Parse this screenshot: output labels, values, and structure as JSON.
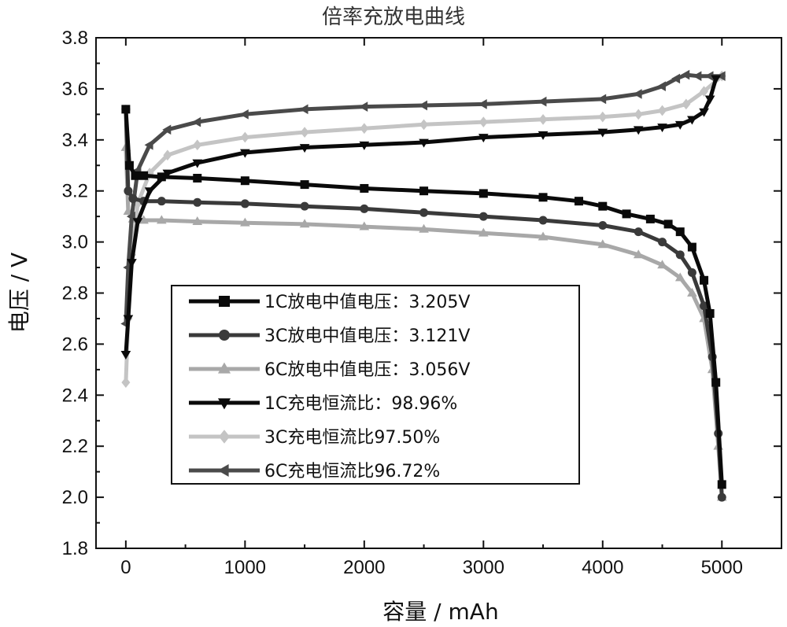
{
  "chart_data": {
    "type": "line",
    "title": "倍率充放电曲线",
    "xlabel": "容量 / mAh",
    "ylabel": "电压 / V",
    "xlim": [
      -250,
      5500
    ],
    "ylim": [
      1.8,
      3.8
    ],
    "xticks": [
      0,
      1000,
      2000,
      3000,
      4000,
      5000
    ],
    "yticks": [
      1.8,
      2.0,
      2.2,
      2.4,
      2.6,
      2.8,
      3.0,
      3.2,
      3.4,
      3.6,
      3.8
    ],
    "xtick_labels": [
      "0",
      "1000",
      "2000",
      "3000",
      "4000",
      "5000"
    ],
    "ytick_labels": [
      "1.8",
      "2.0",
      "2.2",
      "2.4",
      "2.6",
      "2.8",
      "3.0",
      "3.2",
      "3.4",
      "3.6",
      "3.8"
    ],
    "legend_position": "center-left",
    "series": [
      {
        "name": "1C放电中值电压：3.205V",
        "color": "#0a0a0a",
        "marker": "square",
        "x": [
          0,
          30,
          80,
          150,
          300,
          600,
          1000,
          1500,
          2000,
          2500,
          3000,
          3500,
          3800,
          4000,
          4200,
          4400,
          4550,
          4650,
          4750,
          4850,
          4900,
          4950,
          5000
        ],
        "y": [
          3.52,
          3.3,
          3.26,
          3.26,
          3.255,
          3.25,
          3.24,
          3.225,
          3.21,
          3.2,
          3.19,
          3.175,
          3.16,
          3.14,
          3.11,
          3.09,
          3.07,
          3.04,
          2.98,
          2.85,
          2.72,
          2.45,
          2.05
        ]
      },
      {
        "name": "3C放电中值电压：3.121V",
        "color": "#3a3a3a",
        "marker": "circle",
        "x": [
          0,
          20,
          60,
          150,
          300,
          600,
          1000,
          1500,
          2000,
          2500,
          3000,
          3500,
          4000,
          4300,
          4500,
          4650,
          4750,
          4850,
          4920,
          4970,
          5000
        ],
        "y": [
          3.52,
          3.2,
          3.17,
          3.16,
          3.16,
          3.155,
          3.15,
          3.14,
          3.13,
          3.115,
          3.1,
          3.085,
          3.065,
          3.04,
          3.0,
          2.95,
          2.88,
          2.75,
          2.55,
          2.25,
          2.0
        ]
      },
      {
        "name": "6C放电中值电压：3.056V",
        "color": "#a8a8a8",
        "marker": "triangle-up",
        "x": [
          0,
          20,
          60,
          150,
          300,
          600,
          1000,
          1500,
          2000,
          2500,
          3000,
          3500,
          4000,
          4300,
          4500,
          4650,
          4750,
          4850,
          4920,
          4970,
          5000
        ],
        "y": [
          3.37,
          3.12,
          3.09,
          3.085,
          3.085,
          3.08,
          3.075,
          3.07,
          3.06,
          3.05,
          3.035,
          3.02,
          2.99,
          2.95,
          2.91,
          2.86,
          2.8,
          2.7,
          2.5,
          2.2,
          2.0
        ]
      },
      {
        "name": "1C充电恒流比：98.96%",
        "color": "#0a0a0a",
        "marker": "triangle-down",
        "x": [
          0,
          20,
          50,
          100,
          200,
          350,
          600,
          1000,
          1500,
          2000,
          2500,
          3000,
          3500,
          4000,
          4300,
          4500,
          4650,
          4750,
          4850,
          4900,
          4950
        ],
        "y": [
          2.56,
          2.7,
          2.92,
          3.08,
          3.2,
          3.27,
          3.31,
          3.35,
          3.37,
          3.38,
          3.39,
          3.41,
          3.42,
          3.43,
          3.44,
          3.45,
          3.46,
          3.48,
          3.51,
          3.56,
          3.64
        ]
      },
      {
        "name": "3C充电恒流比97.50%",
        "color": "#c4c4c4",
        "marker": "diamond",
        "x": [
          0,
          20,
          50,
          100,
          200,
          350,
          600,
          1000,
          1500,
          2000,
          2500,
          3000,
          3500,
          4000,
          4300,
          4500,
          4700,
          4850,
          5000
        ],
        "y": [
          2.45,
          2.7,
          2.95,
          3.15,
          3.27,
          3.34,
          3.38,
          3.41,
          3.43,
          3.445,
          3.46,
          3.47,
          3.48,
          3.49,
          3.5,
          3.515,
          3.54,
          3.59,
          3.65
        ]
      },
      {
        "name": "6C充电恒流比96.72%",
        "color": "#4a4a4a",
        "marker": "triangle-left",
        "x": [
          0,
          20,
          50,
          100,
          200,
          350,
          600,
          1000,
          1500,
          2000,
          2500,
          3000,
          3500,
          4000,
          4300,
          4500,
          4620,
          4700,
          4800,
          4900,
          5000
        ],
        "y": [
          2.68,
          2.9,
          3.1,
          3.28,
          3.38,
          3.44,
          3.47,
          3.5,
          3.52,
          3.53,
          3.535,
          3.54,
          3.55,
          3.56,
          3.58,
          3.61,
          3.64,
          3.655,
          3.65,
          3.65,
          3.65
        ]
      }
    ]
  }
}
